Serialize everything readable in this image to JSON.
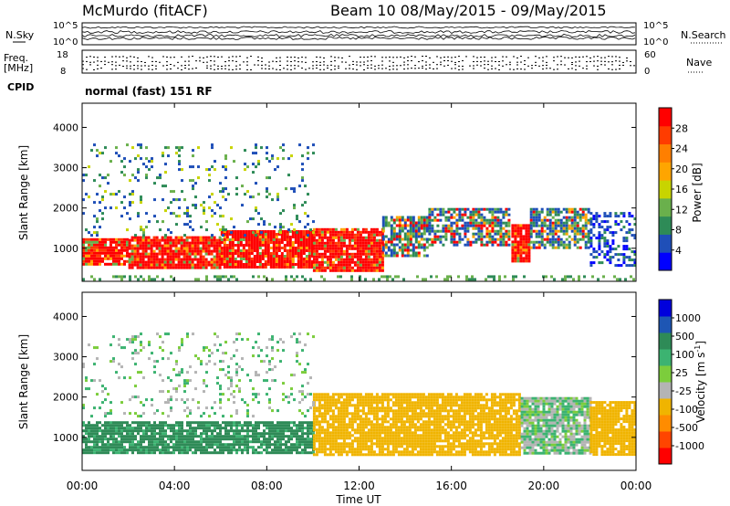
{
  "header": {
    "station": "McMurdo (fitACF)",
    "beam_date": "Beam 10 08/May/2015 - 09/May/2015"
  },
  "noise_panel": {
    "left_label": "N.Sky",
    "right_label": "N.Search",
    "left_ticks": [
      "10^5",
      "10^0"
    ],
    "right_ticks": [
      "10^5",
      "10^0"
    ]
  },
  "freq_panel": {
    "left_label_1": "Freq.",
    "left_label_2": "[MHz]",
    "left_ticks": [
      "18",
      "8"
    ],
    "right_label": "Nave",
    "right_ticks": [
      "60",
      "0"
    ]
  },
  "cpid": {
    "label": "CPID",
    "text": "normal (fast) 151 RF"
  },
  "colors": {
    "power": [
      "#0000ff",
      "#1f4fb8",
      "#2e8b57",
      "#6ab04c",
      "#c8d400",
      "#ffa500",
      "#ff7f00",
      "#ff3c00",
      "#ff0000"
    ],
    "velocity": [
      "#ff0000",
      "#ff4500",
      "#ff8c00",
      "#f0b400",
      "#b4b4b4",
      "#7ccd3c",
      "#3cb371",
      "#2e8b57",
      "#1e56b4",
      "#0000dc"
    ]
  },
  "chart_data": [
    {
      "type": "heatmap",
      "quantity": "Power",
      "ylabel": "Slant Range [km]",
      "ylim": [
        180,
        4600
      ],
      "yticks": [
        1000,
        2000,
        3000,
        4000
      ],
      "xlim": [
        "00:00",
        "24:00"
      ],
      "colorbar": {
        "label": "Power [dB]",
        "ticks": [
          4,
          8,
          12,
          16,
          20,
          24,
          28
        ],
        "range": [
          0,
          32
        ]
      },
      "regions": [
        {
          "t": [
            0,
            24
          ],
          "r": [
            250,
            330
          ],
          "class": "sparse_low"
        },
        {
          "t": [
            0,
            2
          ],
          "r": [
            600,
            1250
          ],
          "class": "strong"
        },
        {
          "t": [
            2,
            6
          ],
          "r": [
            500,
            1300
          ],
          "class": "strong"
        },
        {
          "t": [
            6,
            10
          ],
          "r": [
            550,
            1450
          ],
          "class": "strong"
        },
        {
          "t": [
            10,
            13
          ],
          "r": [
            450,
            1500
          ],
          "class": "strong"
        },
        {
          "t": [
            13,
            15
          ],
          "r": [
            800,
            1800
          ],
          "class": "moderate"
        },
        {
          "t": [
            15,
            18.5
          ],
          "r": [
            1100,
            2000
          ],
          "class": "moderate"
        },
        {
          "t": [
            18.6,
            19.4
          ],
          "r": [
            700,
            1600
          ],
          "class": "strong"
        },
        {
          "t": [
            19.4,
            22
          ],
          "r": [
            1000,
            2000
          ],
          "class": "moderate"
        },
        {
          "t": [
            22,
            24
          ],
          "r": [
            600,
            1900
          ],
          "class": "weak"
        },
        {
          "t": [
            0,
            10
          ],
          "r": [
            1300,
            3600
          ],
          "class": "scattered"
        }
      ]
    },
    {
      "type": "heatmap",
      "quantity": "Velocity",
      "ylabel": "Slant Range [km]",
      "ylim": [
        180,
        4600
      ],
      "yticks": [
        1000,
        2000,
        3000,
        4000
      ],
      "xlim": [
        "00:00",
        "24:00"
      ],
      "xticks": [
        "00:00",
        "04:00",
        "08:00",
        "12:00",
        "16:00",
        "20:00",
        "00:00"
      ],
      "xlabel": "Time UT",
      "colorbar": {
        "label": "Velocity [m s^-1]",
        "ticks": [
          1000,
          500,
          100,
          25,
          -25,
          -100,
          -500,
          -1000
        ]
      },
      "regions": [
        {
          "t": [
            0,
            10
          ],
          "r": [
            600,
            1400
          ],
          "velocity_range": [
            25,
            500
          ]
        },
        {
          "t": [
            10,
            19
          ],
          "r": [
            600,
            2100
          ],
          "velocity_range": [
            -500,
            -100
          ]
        },
        {
          "t": [
            19,
            22
          ],
          "r": [
            600,
            2000
          ],
          "velocity_range": [
            -100,
            100
          ]
        },
        {
          "t": [
            22,
            24
          ],
          "r": [
            600,
            1900
          ],
          "velocity_range": [
            -500,
            -100
          ]
        },
        {
          "t": [
            0,
            10
          ],
          "r": [
            1500,
            3600
          ],
          "velocity_range": [
            -100,
            100
          ]
        }
      ]
    }
  ],
  "time_axis": {
    "ticks": [
      "00:00",
      "04:00",
      "08:00",
      "12:00",
      "16:00",
      "20:00",
      "00:00"
    ],
    "label": "Time UT"
  }
}
